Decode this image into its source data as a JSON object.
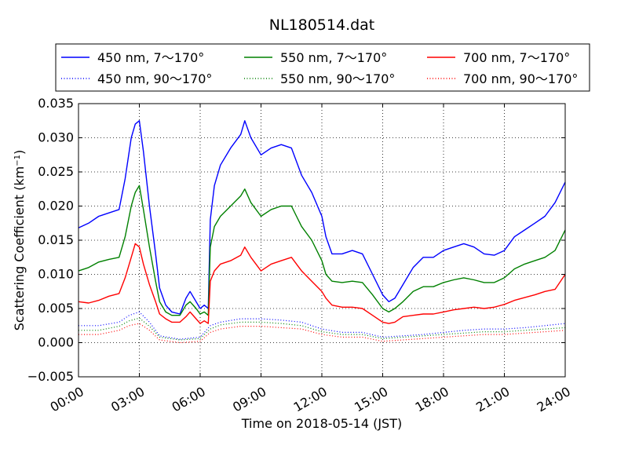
{
  "chart_data": {
    "type": "line",
    "title": "NL180514.dat",
    "xlabel": "Time on 2018-05-14 (JST)",
    "ylabel_main": "Scattering Coefficient (km",
    "ylabel_sup": "−1",
    "ylabel_close": ")",
    "xlim": [
      0,
      24
    ],
    "ylim": [
      -0.005,
      0.035
    ],
    "x_unit": "hours",
    "grid": true,
    "legend_placement": "top, above plot, 3 columns",
    "xticks": [
      {
        "value": 0,
        "label": "00:00"
      },
      {
        "value": 3,
        "label": "03:00"
      },
      {
        "value": 6,
        "label": "06:00"
      },
      {
        "value": 9,
        "label": "09:00"
      },
      {
        "value": 12,
        "label": "12:00"
      },
      {
        "value": 15,
        "label": "15:00"
      },
      {
        "value": 18,
        "label": "18:00"
      },
      {
        "value": 21,
        "label": "21:00"
      },
      {
        "value": 24,
        "label": "24:00"
      }
    ],
    "yticks": [
      {
        "value": -0.005,
        "label": "−0.005"
      },
      {
        "value": 0.0,
        "label": "0.000"
      },
      {
        "value": 0.005,
        "label": "0.005"
      },
      {
        "value": 0.01,
        "label": "0.010"
      },
      {
        "value": 0.015,
        "label": "0.015"
      },
      {
        "value": 0.02,
        "label": "0.020"
      },
      {
        "value": 0.025,
        "label": "0.025"
      },
      {
        "value": 0.03,
        "label": "0.030"
      },
      {
        "value": 0.035,
        "label": "0.035"
      }
    ],
    "series": [
      {
        "name": "450 nm, 7～170°",
        "color": "#0000ff",
        "style": "solid",
        "x": [
          0,
          0.5,
          1,
          1.5,
          2,
          2.3,
          2.6,
          2.8,
          3,
          3.2,
          3.5,
          3.8,
          4,
          4.3,
          4.6,
          5,
          5.3,
          5.5,
          5.8,
          6,
          6.2,
          6.4,
          6.5,
          6.7,
          7,
          7.5,
          8,
          8.2,
          8.5,
          9,
          9.5,
          10,
          10.5,
          11,
          11.5,
          12,
          12.2,
          12.5,
          13,
          13.5,
          14,
          14.5,
          15,
          15.3,
          15.6,
          16,
          16.5,
          17,
          17.5,
          18,
          18.5,
          19,
          19.5,
          20,
          20.5,
          21,
          21.5,
          22,
          22.5,
          23,
          23.5,
          24
        ],
        "values": [
          0.0168,
          0.0175,
          0.0185,
          0.019,
          0.0195,
          0.024,
          0.03,
          0.032,
          0.0325,
          0.028,
          0.02,
          0.013,
          0.008,
          0.0055,
          0.0045,
          0.0042,
          0.0065,
          0.0075,
          0.006,
          0.005,
          0.0055,
          0.005,
          0.018,
          0.023,
          0.026,
          0.0285,
          0.0305,
          0.0325,
          0.03,
          0.0275,
          0.0285,
          0.029,
          0.0285,
          0.0245,
          0.022,
          0.0185,
          0.0155,
          0.013,
          0.013,
          0.0135,
          0.013,
          0.01,
          0.007,
          0.006,
          0.0065,
          0.0085,
          0.011,
          0.0125,
          0.0125,
          0.0135,
          0.014,
          0.0145,
          0.014,
          0.013,
          0.0128,
          0.0135,
          0.0155,
          0.0165,
          0.0175,
          0.0185,
          0.0205,
          0.0235
        ]
      },
      {
        "name": "550 nm, 7～170°",
        "color": "#008000",
        "style": "solid",
        "x": [
          0,
          0.5,
          1,
          1.5,
          2,
          2.3,
          2.6,
          2.8,
          3,
          3.2,
          3.5,
          3.8,
          4,
          4.3,
          4.6,
          5,
          5.3,
          5.5,
          5.8,
          6,
          6.2,
          6.4,
          6.5,
          6.7,
          7,
          7.5,
          8,
          8.2,
          8.5,
          9,
          9.5,
          10,
          10.5,
          11,
          11.5,
          12,
          12.2,
          12.5,
          13,
          13.5,
          14,
          14.5,
          15,
          15.3,
          15.6,
          16,
          16.5,
          17,
          17.5,
          18,
          18.5,
          19,
          19.5,
          20,
          20.5,
          21,
          21.5,
          22,
          22.5,
          23,
          23.5,
          24
        ],
        "values": [
          0.0105,
          0.011,
          0.0118,
          0.0122,
          0.0125,
          0.0155,
          0.02,
          0.022,
          0.023,
          0.0195,
          0.014,
          0.009,
          0.006,
          0.0045,
          0.004,
          0.004,
          0.0055,
          0.006,
          0.005,
          0.0042,
          0.0045,
          0.004,
          0.014,
          0.017,
          0.0185,
          0.02,
          0.0215,
          0.0225,
          0.0205,
          0.0185,
          0.0195,
          0.02,
          0.02,
          0.017,
          0.015,
          0.012,
          0.01,
          0.009,
          0.0088,
          0.009,
          0.0088,
          0.007,
          0.005,
          0.0045,
          0.005,
          0.006,
          0.0075,
          0.0082,
          0.0082,
          0.0088,
          0.0092,
          0.0095,
          0.0092,
          0.0088,
          0.0088,
          0.0095,
          0.0108,
          0.0115,
          0.012,
          0.0125,
          0.0135,
          0.0165
        ]
      },
      {
        "name": "700 nm, 7～170°",
        "color": "#ff0000",
        "style": "solid",
        "x": [
          0,
          0.5,
          1,
          1.5,
          2,
          2.3,
          2.6,
          2.8,
          3,
          3.2,
          3.5,
          3.8,
          4,
          4.3,
          4.6,
          5,
          5.3,
          5.5,
          5.8,
          6,
          6.2,
          6.4,
          6.5,
          6.7,
          7,
          7.5,
          8,
          8.2,
          8.5,
          9,
          9.5,
          10,
          10.5,
          11,
          11.5,
          12,
          12.2,
          12.5,
          13,
          13.5,
          14,
          14.5,
          15,
          15.3,
          15.6,
          16,
          16.5,
          17,
          17.5,
          18,
          18.5,
          19,
          19.5,
          20,
          20.5,
          21,
          21.5,
          22,
          22.5,
          23,
          23.5,
          24
        ],
        "values": [
          0.006,
          0.0058,
          0.0062,
          0.0068,
          0.0072,
          0.0095,
          0.0125,
          0.0145,
          0.014,
          0.0115,
          0.0085,
          0.006,
          0.0042,
          0.0035,
          0.003,
          0.003,
          0.0038,
          0.0045,
          0.0035,
          0.0028,
          0.0032,
          0.0028,
          0.009,
          0.0105,
          0.0115,
          0.012,
          0.0128,
          0.014,
          0.0125,
          0.0105,
          0.0115,
          0.012,
          0.0125,
          0.0105,
          0.009,
          0.0075,
          0.0065,
          0.0055,
          0.0052,
          0.0052,
          0.005,
          0.004,
          0.003,
          0.0028,
          0.003,
          0.0038,
          0.004,
          0.0042,
          0.0042,
          0.0045,
          0.0048,
          0.005,
          0.0052,
          0.005,
          0.0052,
          0.0056,
          0.0062,
          0.0066,
          0.007,
          0.0075,
          0.0078,
          0.01
        ]
      },
      {
        "name": "450 nm, 90～170°",
        "color": "#0000ff",
        "style": "dotted",
        "x": [
          0,
          1,
          2,
          2.5,
          3,
          3.5,
          4,
          5,
          6,
          6.5,
          7,
          8,
          9,
          10,
          11,
          12,
          13,
          14,
          15,
          16,
          17,
          18,
          19,
          20,
          21,
          22,
          23,
          24
        ],
        "values": [
          0.0025,
          0.0025,
          0.003,
          0.004,
          0.0045,
          0.003,
          0.001,
          0.0005,
          0.0008,
          0.0025,
          0.003,
          0.0035,
          0.0035,
          0.0033,
          0.003,
          0.002,
          0.0015,
          0.0015,
          0.0008,
          0.001,
          0.0012,
          0.0015,
          0.0018,
          0.002,
          0.002,
          0.0022,
          0.0025,
          0.0028
        ]
      },
      {
        "name": "550 nm, 90～170°",
        "color": "#008000",
        "style": "dotted",
        "x": [
          0,
          1,
          2,
          2.5,
          3,
          3.5,
          4,
          5,
          6,
          6.5,
          7,
          8,
          9,
          10,
          11,
          12,
          13,
          14,
          15,
          16,
          17,
          18,
          19,
          20,
          21,
          22,
          23,
          24
        ],
        "values": [
          0.0018,
          0.0018,
          0.0024,
          0.0032,
          0.0036,
          0.0024,
          0.0008,
          0.0004,
          0.0006,
          0.002,
          0.0026,
          0.003,
          0.003,
          0.0028,
          0.0025,
          0.0016,
          0.0012,
          0.0012,
          0.0006,
          0.0008,
          0.001,
          0.0012,
          0.0014,
          0.0016,
          0.0016,
          0.0018,
          0.002,
          0.0022
        ]
      },
      {
        "name": "700 nm, 90～170°",
        "color": "#ff0000",
        "style": "dotted",
        "x": [
          0,
          1,
          2,
          2.5,
          3,
          3.5,
          4,
          5,
          6,
          6.5,
          7,
          8,
          9,
          10,
          11,
          12,
          13,
          14,
          15,
          16,
          17,
          18,
          19,
          20,
          21,
          22,
          23,
          24
        ],
        "values": [
          0.0012,
          0.0012,
          0.0018,
          0.0025,
          0.0028,
          0.0018,
          0.0004,
          0.0,
          0.0002,
          0.0015,
          0.002,
          0.0024,
          0.0024,
          0.0022,
          0.002,
          0.0012,
          0.0008,
          0.0008,
          0.0002,
          0.0004,
          0.0006,
          0.0008,
          0.001,
          0.0012,
          0.0012,
          0.0014,
          0.0016,
          0.0018
        ]
      }
    ]
  }
}
